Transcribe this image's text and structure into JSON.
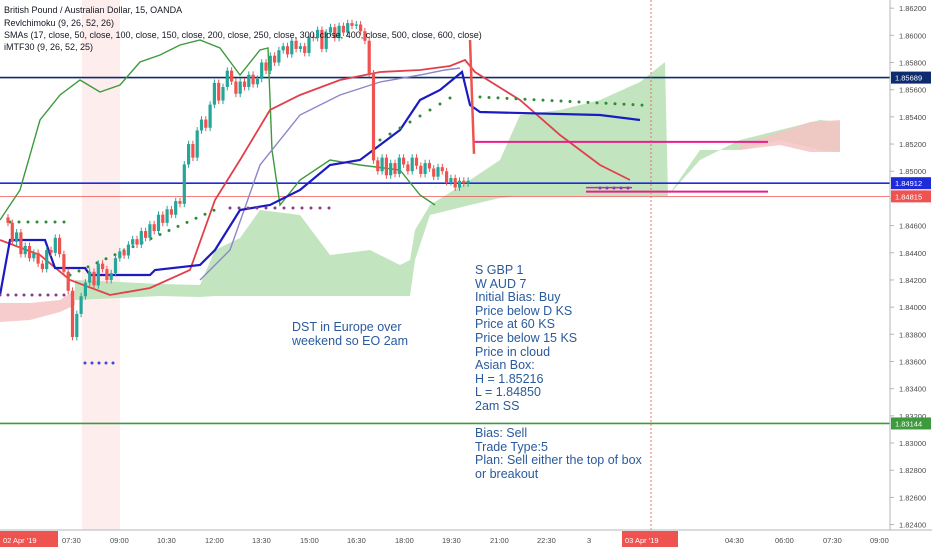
{
  "header": {
    "symbol": "British Pound / Australian Dollar, 15, OANDA",
    "ind1": "Revlchimoku (9, 26, 52, 26)",
    "ind2": "SMAs (17, close, 50, close, 100, close, 150, close, 200, close, 250, close, 300, close, 400, close, 500, close, 600, close)",
    "ind3": "iMTF30 (9, 26, 52, 25)"
  },
  "annotations": {
    "dst_line1": "DST in Europe over",
    "dst_line2": "weekend so EO 2am",
    "analysis": [
      "S GBP 1",
      "W AUD 7",
      "Initial Bias: Buy",
      "Price below D KS",
      "Price at 60 KS",
      "Price below 15 KS",
      "Price in cloud",
      "Asian Box:",
      "H = 1.85216",
      "L = 1.84850",
      "2am SS"
    ],
    "plan": [
      "Bias: Sell",
      "Trade Type:5",
      "Plan: Sell either the top of box",
      "or breakout"
    ]
  },
  "colors": {
    "up": "#26a69a",
    "down": "#ef5350",
    "kijun": "#1b1bbf",
    "tenkan": "#e0404a",
    "sma": "#8a86c8",
    "cloud_bull": "#b7e1b5",
    "cloud_bear": "#f6c3c3",
    "navy_line": "#0d2b6e",
    "blue_line": "#1e2bd8",
    "green_line": "#3d9a3d",
    "magenta": "#e91e8c",
    "text_note": "#2a5a9c"
  },
  "chart_data": {
    "type": "candlestick",
    "y_axis_ticks": [
      "1.86200",
      "1.86000",
      "1.85800",
      "1.85600",
      "1.85400",
      "1.85200",
      "1.85000",
      "1.84800",
      "1.84600",
      "1.84400",
      "1.84200",
      "1.84000",
      "1.83800",
      "1.83600",
      "1.83400",
      "1.83200",
      "1.83000",
      "1.82800",
      "1.82600",
      "1.82400"
    ],
    "y_range": [
      1.8236,
      1.8626
    ],
    "x_axis_ticks": [
      "02 Apr '19",
      "07:30",
      "09:00",
      "10:30",
      "12:00",
      "13:30",
      "15:00",
      "16:30",
      "18:00",
      "19:30",
      "21:00",
      "22:30",
      "3",
      "03 Apr '19",
      "04:30",
      "06:00",
      "07:30",
      "09:00"
    ],
    "horizontal_levels": [
      {
        "price": 1.85689,
        "label": "1.85689",
        "color": "#0d2b6e"
      },
      {
        "price": 1.84912,
        "label": "1.84912",
        "color": "#1e2bd8"
      },
      {
        "price": 1.84815,
        "label": "1.84815",
        "color": "#ef5350"
      },
      {
        "price": 1.83144,
        "label": "1.83144",
        "color": "#3d9a3d"
      }
    ],
    "asian_box": {
      "high": 1.85216,
      "low": 1.8485
    },
    "closes": [
      1.8462,
      1.8448,
      1.8455,
      1.8439,
      1.8445,
      1.8436,
      1.844,
      1.8432,
      1.8428,
      1.8442,
      1.844,
      1.8451,
      1.8439,
      1.8426,
      1.8412,
      1.8378,
      1.8395,
      1.8408,
      1.8418,
      1.8426,
      1.8416,
      1.8432,
      1.8428,
      1.842,
      1.8425,
      1.8436,
      1.8441,
      1.8438,
      1.8446,
      1.845,
      1.8446,
      1.8456,
      1.8451,
      1.8461,
      1.8456,
      1.8468,
      1.8462,
      1.8472,
      1.8468,
      1.8478,
      1.8476,
      1.8505,
      1.852,
      1.851,
      1.853,
      1.8538,
      1.8532,
      1.8549,
      1.8565,
      1.8552,
      1.8562,
      1.8574,
      1.8566,
      1.8557,
      1.8566,
      1.8562,
      1.8571,
      1.8564,
      1.8568,
      1.858,
      1.8574,
      1.8585,
      1.858,
      1.8589,
      1.8592,
      1.8586,
      1.8596,
      1.859,
      1.8592,
      1.8587,
      1.8599,
      1.8598,
      1.8604,
      1.859,
      1.8602,
      1.8606,
      1.8598,
      1.8607,
      1.8602,
      1.8609,
      1.8607,
      1.8608,
      1.8603,
      1.8596,
      1.8572,
      1.8508,
      1.85,
      1.851,
      1.8497,
      1.8506,
      1.8498,
      1.851,
      1.8505,
      1.85,
      1.851,
      1.8504,
      1.8498,
      1.8506,
      1.8502,
      1.8496,
      1.8503,
      1.85,
      1.8492,
      1.8495,
      1.8488,
      1.8493,
      1.8491,
      1.8493
    ]
  }
}
